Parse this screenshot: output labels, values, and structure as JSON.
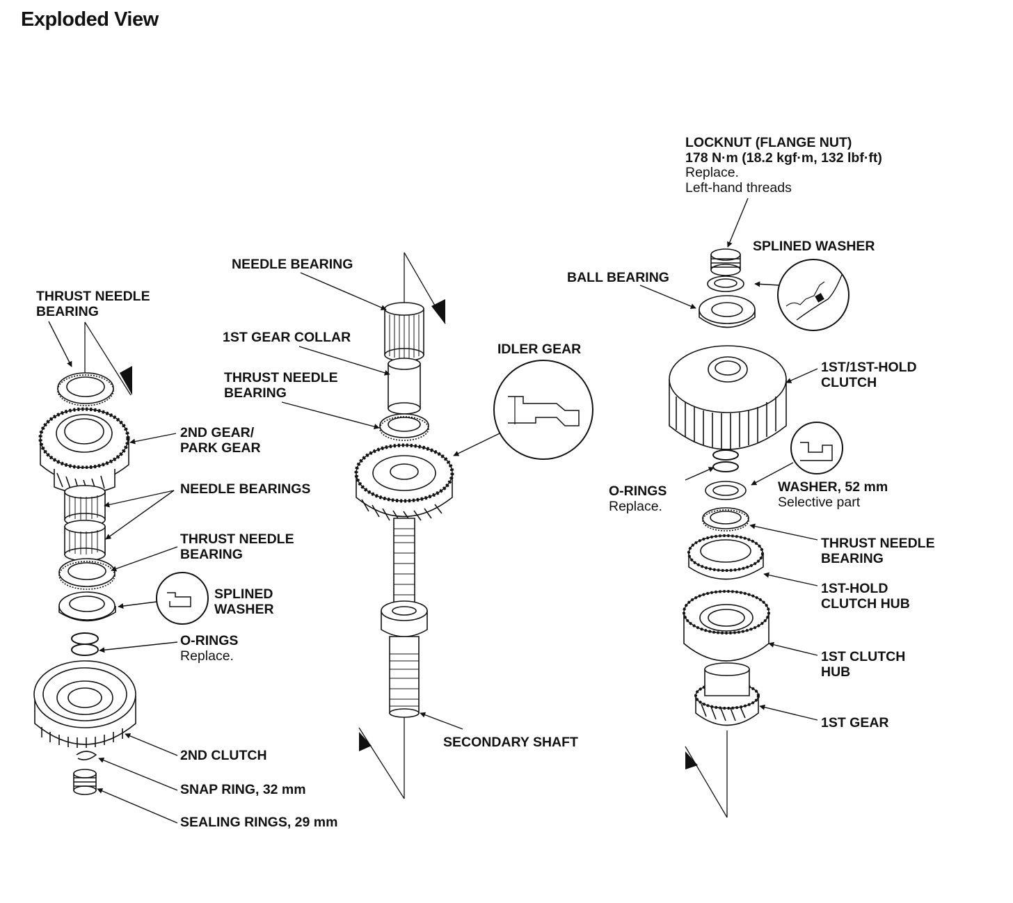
{
  "title": "Exploded View",
  "labels": {
    "locknut": {
      "name": "LOCKNUT (FLANGE NUT)",
      "torque": "178 N·m (18.2 kgf·m, 132 lbf·ft)",
      "note1": "Replace.",
      "note2": "Left-hand threads"
    },
    "splined_washer_top": {
      "name": "SPLINED WASHER"
    },
    "ball_bearing": {
      "name": "BALL BEARING"
    },
    "clutch_1st_1sthold": {
      "line1": "1ST/1ST-HOLD",
      "line2": "CLUTCH"
    },
    "orings_right": {
      "name": "O-RINGS",
      "note": "Replace."
    },
    "washer_52": {
      "name": "WASHER, 52 mm",
      "note": "Selective part"
    },
    "thrust_right": {
      "line1": "THRUST NEEDLE",
      "line2": "BEARING"
    },
    "hub_1sthold": {
      "line1": "1ST-HOLD",
      "line2": "CLUTCH HUB"
    },
    "hub_1st": {
      "line1": "1ST CLUTCH",
      "line2": "HUB"
    },
    "gear_1st": {
      "name": "1ST GEAR"
    },
    "needle_top": {
      "name": "NEEDLE BEARING"
    },
    "collar_1st": {
      "name": "1ST GEAR COLLAR"
    },
    "thrust_mid": {
      "line1": "THRUST NEEDLE",
      "line2": "BEARING"
    },
    "idler_gear": {
      "name": "IDLER GEAR"
    },
    "secondary_shaft": {
      "name": "SECONDARY SHAFT"
    },
    "thrust_left": {
      "line1": "THRUST NEEDLE",
      "line2": "BEARING"
    },
    "gear_2nd_park": {
      "line1": "2ND GEAR/",
      "line2": "PARK GEAR"
    },
    "needle_bearings": {
      "name": "NEEDLE BEARINGS"
    },
    "thrust_left2": {
      "line1": "THRUST NEEDLE",
      "line2": "BEARING"
    },
    "splined_washer_left": {
      "line1": "SPLINED",
      "line2": "WASHER"
    },
    "orings_left": {
      "name": "O-RINGS",
      "note": "Replace."
    },
    "clutch_2nd": {
      "name": "2ND CLUTCH"
    },
    "snap_ring": {
      "name": "SNAP RING, 32 mm"
    },
    "sealing_rings": {
      "name": "SEALING RINGS, 29 mm"
    }
  }
}
